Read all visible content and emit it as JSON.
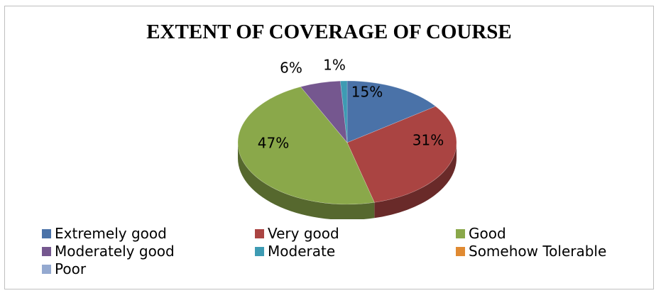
{
  "chart_data": {
    "type": "pie",
    "title": "EXTENT OF COVERAGE OF COURSE",
    "slices": [
      {
        "name": "Extremely good",
        "value": 15,
        "label": "15%",
        "color": "#4a72a8"
      },
      {
        "name": "Very good",
        "value": 31,
        "label": "31%",
        "color": "#aa4442"
      },
      {
        "name": "Good",
        "value": 47,
        "label": "47%",
        "color": "#8aa84a"
      },
      {
        "name": "Moderately good",
        "value": 6,
        "label": "6%",
        "color": "#75578f"
      },
      {
        "name": "Moderate",
        "value": 1,
        "label": "1%",
        "color": "#3e9bb3"
      },
      {
        "name": "Somehow Tolerable",
        "value": 0,
        "label": "",
        "color": "#e08a32"
      },
      {
        "name": "Poor",
        "value": 0,
        "label": "",
        "color": "#94a9d0"
      }
    ],
    "legend_position": "bottom"
  }
}
